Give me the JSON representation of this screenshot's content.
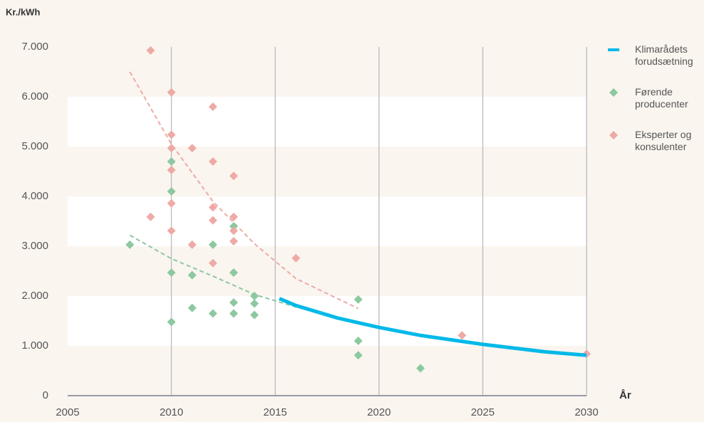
{
  "chart_data": {
    "type": "scatter",
    "y_label": "Kr./kWh",
    "x_label": "År",
    "xlim": [
      2005,
      2030
    ],
    "ylim": [
      0,
      7000
    ],
    "xticks": [
      2005,
      2010,
      2015,
      2020,
      2025,
      2030
    ],
    "yticks": [
      0,
      {
        "value": 1000,
        "label": "1.000"
      },
      {
        "value": 2000,
        "label": "2.000"
      },
      {
        "value": 3000,
        "label": "3.000"
      },
      {
        "value": 4000,
        "label": "4.000"
      },
      {
        "value": 5000,
        "label": "5.000"
      },
      {
        "value": 6000,
        "label": "6.000"
      },
      {
        "value": 7000,
        "label": "7.000"
      }
    ],
    "grid": true,
    "legend": "right",
    "series": [
      {
        "name": "Klimarådets forudsætning",
        "color": "#00b9e8",
        "style": "line",
        "x": [
          2015.2,
          2016,
          2018,
          2020,
          2022,
          2025,
          2028,
          2030
        ],
        "values": [
          1950,
          1810,
          1560,
          1370,
          1210,
          1030,
          880,
          810
        ]
      },
      {
        "name": "Førende producenter",
        "color": "#8cc8a0",
        "style": "diamond",
        "x": [
          2008,
          2010,
          2010,
          2010,
          2010,
          2011,
          2011,
          2012,
          2012,
          2013,
          2013,
          2013,
          2013,
          2014,
          2014,
          2014,
          2019,
          2019,
          2019,
          2022
        ],
        "values": [
          3030,
          4700,
          4100,
          2470,
          1480,
          2420,
          1760,
          3030,
          1650,
          3400,
          2470,
          1870,
          1650,
          2000,
          1850,
          1620,
          1930,
          1100,
          810,
          550
        ],
        "trend": {
          "x": [
            2008,
            2010,
            2012,
            2014,
            2016,
            2017.5
          ],
          "values": [
            3220,
            2750,
            2400,
            2030,
            1780,
            1620
          ]
        }
      },
      {
        "name": "Eksperter og konsulenter",
        "color": "#eeaaa5",
        "style": "diamond",
        "x": [
          2009,
          2009,
          2010,
          2010,
          2010,
          2010,
          2010,
          2010,
          2011,
          2011,
          2012,
          2012,
          2012,
          2012,
          2012,
          2013,
          2013,
          2013,
          2013,
          2016,
          2024,
          2030
        ],
        "values": [
          6930,
          3590,
          6090,
          5240,
          4970,
          4530,
          3860,
          3310,
          4970,
          3030,
          5800,
          4700,
          3780,
          3520,
          2660,
          4410,
          3590,
          3310,
          3100,
          2760,
          1210,
          840
        ],
        "trend": {
          "x": [
            2008,
            2010,
            2012,
            2014,
            2016,
            2019
          ],
          "values": [
            6500,
            5050,
            3900,
            3050,
            2350,
            1750
          ]
        }
      }
    ]
  }
}
